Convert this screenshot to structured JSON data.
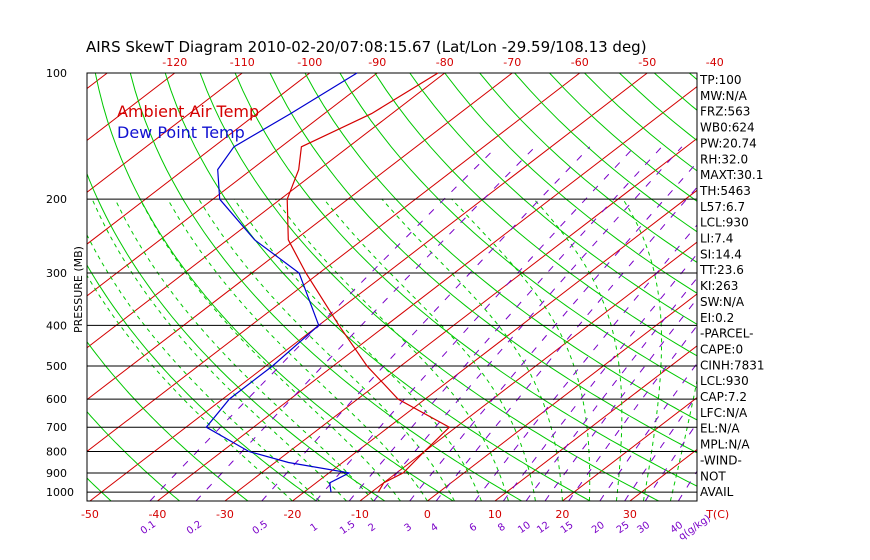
{
  "title": "AIRS SkewT Diagram 2010-02-20/07:08:15.67 (Lat/Lon -29.59/108.13 deg)",
  "ylabel": "PRESSURE (MB)",
  "legend": {
    "ambient": "Ambient Air Temp",
    "dew": "Dew Point Temp"
  },
  "colors": {
    "temp": "#d40000",
    "dew": "#0000d0",
    "isotherm": "#d40000",
    "dry_adiabat": "#00c800",
    "moist_adiabat": "#00c800",
    "mixing_ratio": "#7a00c8",
    "isobar": "#000000"
  },
  "pressure_labels": [
    "100",
    "200",
    "300",
    "400",
    "500",
    "600",
    "700",
    "800",
    "900",
    "1000"
  ],
  "top_temp_labels": [
    "-120",
    "-110",
    "-100",
    "-90",
    "-80",
    "-70",
    "-60",
    "-50",
    "-40"
  ],
  "bottom_temp_labels": [
    "-50",
    "-40",
    "-30",
    "-20",
    "-10",
    "0",
    "10",
    "20",
    "30",
    "T(C)"
  ],
  "mixing_ratio_labels": [
    "0.1",
    "0.2",
    "0.5",
    "1",
    "1.5",
    "2",
    "3",
    "4",
    "6",
    "8",
    "10",
    "12",
    "15",
    "20",
    "25",
    "30",
    "40",
    "q(g/kg)"
  ],
  "stats": [
    "TP:100",
    "MW:N/A",
    "FRZ:563",
    "WB0:624",
    "PW:20.74",
    "RH:32.0",
    "MAXT:30.1",
    "TH:5463",
    "L57:6.7",
    "LCL:930",
    "LI:7.4",
    "SI:14.4",
    "TT:23.6",
    "KI:263",
    "SW:N/A",
    "EI:0.2",
    "-PARCEL-",
    "CAPE:0",
    "CINH:7831",
    "LCL:930",
    "CAP:7.2",
    "LFC:N/A",
    "EL:N/A",
    "MPL:N/A",
    "-WIND-",
    "NOT",
    "AVAIL"
  ],
  "chart_data": {
    "type": "line",
    "title": "AIRS SkewT Diagram 2010-02-20/07:08:15.67 (Lat/Lon -29.59/108.13 deg)",
    "ylabel": "PRESSURE (MB)",
    "xlabel": "T(C)",
    "y_scale": "log",
    "ylim": [
      1050,
      100
    ],
    "series": [
      {
        "name": "Ambient Air Temp",
        "pressure": [
          100,
          125,
          150,
          170,
          200,
          250,
          300,
          400,
          500,
          600,
          700,
          800,
          900,
          950,
          1000
        ],
        "temperature": [
          -81,
          -83,
          -87,
          -83,
          -79,
          -71,
          -62,
          -47,
          -35,
          -24,
          -11,
          -10,
          -9,
          -10,
          -9
        ]
      },
      {
        "name": "Dew Point Temp",
        "pressure": [
          100,
          125,
          150,
          170,
          200,
          250,
          300,
          400,
          500,
          600,
          700,
          800,
          850,
          900,
          950,
          1000
        ],
        "temperature": [
          -93,
          -95,
          -97,
          -95,
          -89,
          -76,
          -63,
          -50,
          -49,
          -49,
          -47,
          -36,
          -28,
          -17,
          -18,
          -16
        ]
      }
    ]
  }
}
